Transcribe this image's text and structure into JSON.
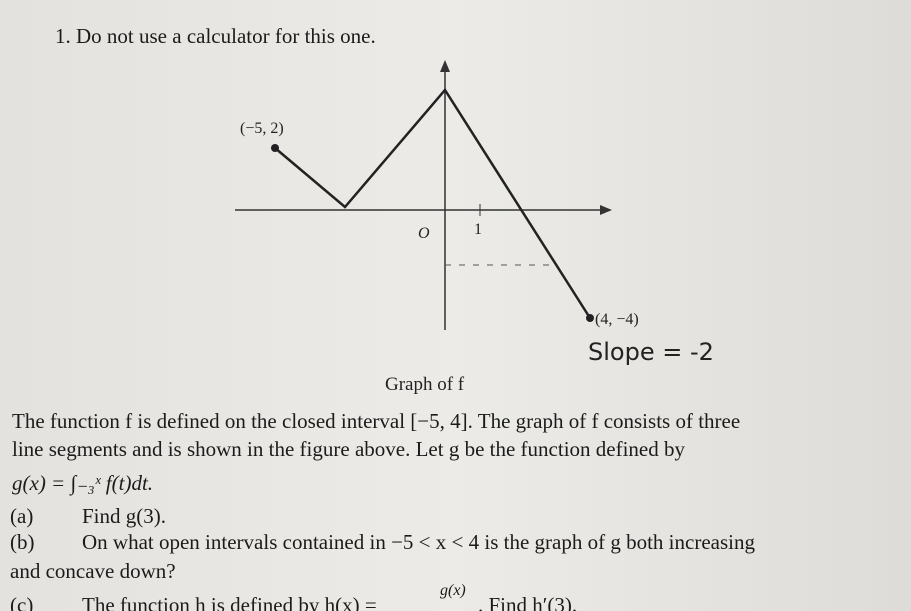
{
  "header": {
    "title": "1. Do not use a calculator for this one."
  },
  "figure": {
    "point_left": "(−5, 2)",
    "origin": "O",
    "tick_one": "1",
    "point_right": "(4, −4)",
    "note": "Slope = -2",
    "caption": "Graph of f"
  },
  "body": {
    "intro_1": "The function f is defined on the closed interval [−5, 4]. The graph of f consists of three",
    "intro_2": "line segments and is shown in the figure above. Let g be the function defined by",
    "definition": "g(x) = ∫₋₃ˣ f(t)dt.",
    "parts": [
      {
        "label": "(a)",
        "text": "Find g(3)."
      },
      {
        "label": "(b)",
        "text": "On what open intervals contained in −5 < x < 4 is the graph of g both increasing",
        "text_2": "and concave down?"
      },
      {
        "label": "(c)",
        "text": "The function h is defined by h(x) =",
        "fraction": "g(x)",
        "text_2": ". Find h′(3)."
      }
    ]
  }
}
